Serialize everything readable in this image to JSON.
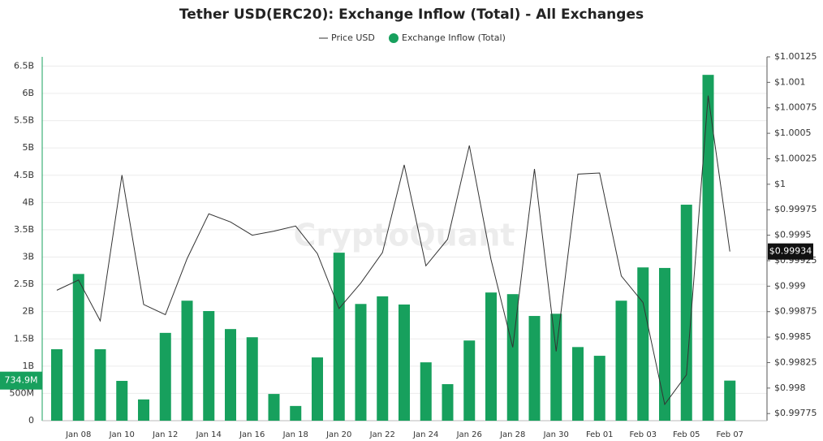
{
  "chart_data": {
    "type": "bar-line",
    "title": "Tether USD(ERC20): Exchange Inflow (Total) - All Exchanges",
    "watermark": "CryptoQuant",
    "categories": [
      null,
      "Jan 08",
      null,
      "Jan 10",
      null,
      "Jan 12",
      null,
      "Jan 14",
      null,
      "Jan 16",
      null,
      "Jan 18",
      null,
      "Jan 20",
      null,
      "Jan 22",
      null,
      "Jan 24",
      null,
      "Jan 26",
      null,
      "Jan 28",
      null,
      "Jan 30",
      null,
      "Feb 01",
      null,
      "Feb 03",
      null,
      "Feb 05",
      null,
      "Feb 07"
    ],
    "series": [
      {
        "name": "Exchange Inflow (Total)",
        "type": "bar",
        "color": "#17a05d",
        "values": [
          1.31,
          2.69,
          1.31,
          0.73,
          0.39,
          1.61,
          2.2,
          2.01,
          1.68,
          1.53,
          0.49,
          0.27,
          1.16,
          3.08,
          2.14,
          2.28,
          2.13,
          1.07,
          0.67,
          1.47,
          2.35,
          2.32,
          1.92,
          1.96,
          1.35,
          1.19,
          2.2,
          2.81,
          2.8,
          3.96,
          6.34,
          0.7349
        ],
        "value_labels": [
          null,
          null,
          null,
          null,
          null,
          null,
          null,
          null,
          null,
          null,
          null,
          null,
          null,
          null,
          null,
          null,
          null,
          null,
          null,
          null,
          null,
          null,
          null,
          null,
          null,
          null,
          null,
          null,
          null,
          null,
          null,
          "734.9M"
        ]
      },
      {
        "name": "Price USD",
        "type": "line",
        "axis": "y2",
        "color": "#333333",
        "values": [
          0.99896,
          0.99906,
          0.99866,
          1.00009,
          0.99882,
          0.99872,
          0.99927,
          0.99971,
          0.99963,
          0.9995,
          0.99954,
          0.99959,
          0.99932,
          0.99878,
          0.99903,
          0.99933,
          1.00019,
          0.9992,
          0.99946,
          1.00038,
          0.99926,
          0.9984,
          1.00015,
          0.99836,
          1.0001,
          1.00011,
          0.9991,
          0.99884,
          0.99784,
          0.99813,
          1.00087,
          0.99934
        ],
        "value_labels": [
          null,
          null,
          null,
          null,
          null,
          null,
          null,
          null,
          null,
          null,
          null,
          null,
          null,
          null,
          null,
          null,
          null,
          null,
          null,
          null,
          null,
          null,
          null,
          null,
          null,
          null,
          null,
          null,
          null,
          null,
          null,
          "$0.99934"
        ]
      }
    ],
    "ylim": [
      0,
      6.67
    ],
    "yticks": [
      0,
      {
        "value": 0.5,
        "label": "500M"
      },
      {
        "value": 1,
        "label": "1B"
      },
      {
        "value": 1.5,
        "label": "1.5B"
      },
      {
        "value": 2,
        "label": "2B"
      },
      {
        "value": 2.5,
        "label": "2.5B"
      },
      {
        "value": 3,
        "label": "3B"
      },
      {
        "value": 3.5,
        "label": "3.5B"
      },
      {
        "value": 4,
        "label": "4B"
      },
      {
        "value": 4.5,
        "label": "4.5B"
      },
      {
        "value": 5,
        "label": "5B"
      },
      {
        "value": 5.5,
        "label": "5.5B"
      },
      {
        "value": 6,
        "label": "6B"
      },
      {
        "value": 6.5,
        "label": "6.5B"
      }
    ],
    "y2lim": [
      0.99768,
      1.00125
    ],
    "y2ticks": [
      {
        "value": 0.99775,
        "label": "$0.99775"
      },
      {
        "value": 0.998,
        "label": "$0.998"
      },
      {
        "value": 0.99825,
        "label": "$0.99825"
      },
      {
        "value": 0.9985,
        "label": "$0.9985"
      },
      {
        "value": 0.99875,
        "label": "$0.99875"
      },
      {
        "value": 0.999,
        "label": "$0.999"
      },
      {
        "value": 0.99925,
        "label": "$0.99925"
      },
      {
        "value": 0.9995,
        "label": "$0.9995"
      },
      {
        "value": 0.99975,
        "label": "$0.99975"
      },
      {
        "value": 1,
        "label": "$1"
      },
      {
        "value": 1.00025,
        "label": "$1.00025"
      },
      {
        "value": 1.0005,
        "label": "$1.0005"
      },
      {
        "value": 1.00075,
        "label": "$1.00075"
      },
      {
        "value": 1.001,
        "label": "$1.001"
      },
      {
        "value": 1.00125,
        "label": "$1.00125"
      }
    ],
    "grid": true
  }
}
